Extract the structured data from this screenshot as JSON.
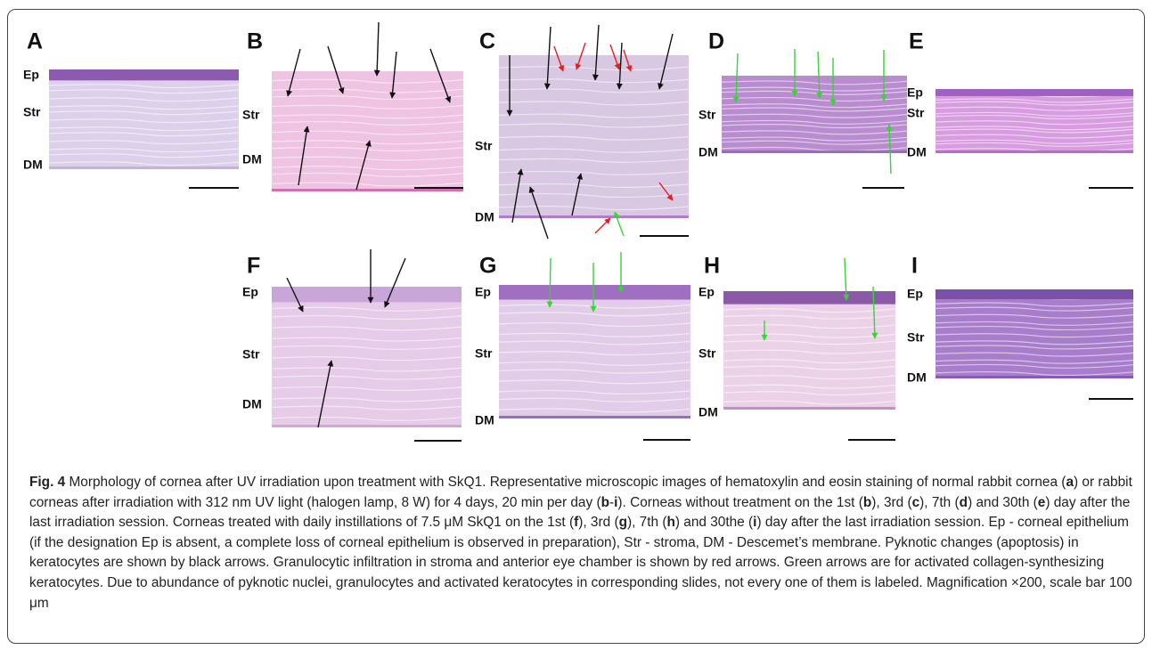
{
  "panels": [
    {
      "letter": "A",
      "labels": [
        "Ep",
        "Str",
        "DM"
      ]
    },
    {
      "letter": "B",
      "labels": [
        "Str",
        "DM"
      ]
    },
    {
      "letter": "C",
      "labels": [
        "Str",
        "DM"
      ]
    },
    {
      "letter": "D",
      "labels": [
        "Str",
        "DM"
      ]
    },
    {
      "letter": "E",
      "labels": [
        "Ep",
        "Str",
        "DM"
      ]
    },
    {
      "letter": "F",
      "labels": [
        "Ep",
        "Str",
        "DM"
      ]
    },
    {
      "letter": "G",
      "labels": [
        "Ep",
        "Str",
        "DM"
      ]
    },
    {
      "letter": "H",
      "labels": [
        "Ep",
        "Str",
        "DM"
      ]
    },
    {
      "letter": "I",
      "labels": [
        "Ep",
        "Str",
        "DM"
      ]
    }
  ],
  "caption": {
    "label": "Fig. 4",
    "parts": [
      {
        "text": " Morphology of cornea after UV irradiation upon treatment with SkQ1. Representative microscopic images of hematoxylin and eosin staining of normal rabbit cornea (",
        "bold": false
      },
      {
        "text": "a",
        "bold": true
      },
      {
        "text": ") or rabbit corneas after irradiation with 312 nm UV light (halogen lamp, 8 W) for 4 days, 20 min per day (",
        "bold": false
      },
      {
        "text": "b",
        "bold": true
      },
      {
        "text": "-",
        "bold": false
      },
      {
        "text": "i",
        "bold": true
      },
      {
        "text": "). Corneas without treatment on the 1st (",
        "bold": false
      },
      {
        "text": "b",
        "bold": true
      },
      {
        "text": "), 3rd (",
        "bold": false
      },
      {
        "text": "c",
        "bold": true
      },
      {
        "text": "), 7th (",
        "bold": false
      },
      {
        "text": "d",
        "bold": true
      },
      {
        "text": ") and 30th (",
        "bold": false
      },
      {
        "text": "e",
        "bold": true
      },
      {
        "text": ") day after the last irradiation session. Corneas treated with daily instillations of 7.5 μM SkQ1 on the 1st (",
        "bold": false
      },
      {
        "text": "f",
        "bold": true
      },
      {
        "text": "), 3rd (",
        "bold": false
      },
      {
        "text": "g",
        "bold": true
      },
      {
        "text": "), 7th (",
        "bold": false
      },
      {
        "text": "h",
        "bold": true
      },
      {
        "text": ") and 30the (",
        "bold": false
      },
      {
        "text": "i",
        "bold": true
      },
      {
        "text": ") day after the last irradiation session. Ep - corneal epithelium (if the designation Ep is absent, a complete loss of corneal epithelium is observed in preparation), Str - stroma, DM - Descemet’s membrane. Pyknotic changes (apoptosis) in keratocytes are shown by black arrows. Granulocytic infiltration in stroma and anterior eye chamber is shown by red arrows. Green arrows are for activated collagen-synthesizing keratocytes. Due to abundance of pyknotic nuclei, granulocytes and activated keratocytes in corresponding slides, not every one of them is labeled. Magnification ×200, scale bar 100 μm",
        "bold": false
      }
    ]
  }
}
